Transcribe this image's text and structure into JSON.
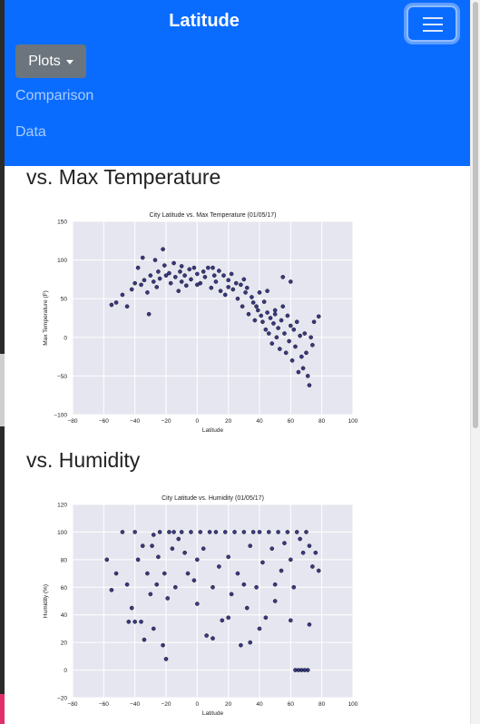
{
  "navbar": {
    "brand": "Latitude",
    "dropdown_label": "Plots",
    "links": [
      "Comparison",
      "Data"
    ]
  },
  "sections": [
    {
      "heading": "vs. Max Temperature"
    },
    {
      "heading": "vs. Humidity"
    }
  ],
  "colors": {
    "navbar": "#0a6cff",
    "button": "#6c757d",
    "marker": "#1a1a6e",
    "plot_bg": "#e5e6ef"
  },
  "chart_data": [
    {
      "type": "scatter",
      "title": "City Latitude vs. Max Temperature (01/05/17)",
      "xlabel": "Latitude",
      "ylabel": "Max Temperature (F)",
      "xlim": [
        -80,
        100
      ],
      "ylim": [
        -100,
        150
      ],
      "xticks": [
        -80,
        -60,
        -40,
        -20,
        0,
        20,
        40,
        60,
        80,
        100
      ],
      "yticks": [
        -100,
        -50,
        0,
        50,
        100,
        150
      ],
      "grid": true,
      "points": [
        [
          -55,
          42
        ],
        [
          -52,
          45
        ],
        [
          -48,
          55
        ],
        [
          -45,
          40
        ],
        [
          -42,
          62
        ],
        [
          -40,
          70
        ],
        [
          -38,
          90
        ],
        [
          -36,
          68
        ],
        [
          -35,
          103
        ],
        [
          -34,
          74
        ],
        [
          -32,
          58
        ],
        [
          -31,
          30
        ],
        [
          -30,
          80
        ],
        [
          -28,
          72
        ],
        [
          -27,
          100
        ],
        [
          -26,
          65
        ],
        [
          -25,
          85
        ],
        [
          -24,
          76
        ],
        [
          -22,
          114
        ],
        [
          -21,
          93
        ],
        [
          -20,
          80
        ],
        [
          -18,
          83
        ],
        [
          -17,
          70
        ],
        [
          -15,
          96
        ],
        [
          -14,
          78
        ],
        [
          -12,
          60
        ],
        [
          -11,
          85
        ],
        [
          -10,
          92
        ],
        [
          -8,
          80
        ],
        [
          -7,
          67
        ],
        [
          -5,
          88
        ],
        [
          -4,
          75
        ],
        [
          -2,
          90
        ],
        [
          0,
          82
        ],
        [
          2,
          70
        ],
        [
          4,
          85
        ],
        [
          5,
          78
        ],
        [
          7,
          90
        ],
        [
          9,
          64
        ],
        [
          11,
          80
        ],
        [
          12,
          72
        ],
        [
          14,
          86
        ],
        [
          15,
          60
        ],
        [
          17,
          80
        ],
        [
          18,
          55
        ],
        [
          20,
          74
        ],
        [
          22,
          82
        ],
        [
          23,
          62
        ],
        [
          25,
          70
        ],
        [
          26,
          50
        ],
        [
          28,
          68
        ],
        [
          29,
          40
        ],
        [
          31,
          58
        ],
        [
          32,
          64
        ],
        [
          33,
          30
        ],
        [
          35,
          52
        ],
        [
          36,
          45
        ],
        [
          37,
          22
        ],
        [
          38,
          40
        ],
        [
          39,
          35
        ],
        [
          40,
          58
        ],
        [
          41,
          28
        ],
        [
          42,
          20
        ],
        [
          43,
          46
        ],
        [
          44,
          10
        ],
        [
          45,
          32
        ],
        [
          46,
          5
        ],
        [
          47,
          25
        ],
        [
          48,
          -8
        ],
        [
          49,
          18
        ],
        [
          50,
          30
        ],
        [
          51,
          0
        ],
        [
          52,
          12
        ],
        [
          53,
          -15
        ],
        [
          54,
          22
        ],
        [
          55,
          40
        ],
        [
          56,
          5
        ],
        [
          57,
          -20
        ],
        [
          58,
          28
        ],
        [
          59,
          -5
        ],
        [
          60,
          15
        ],
        [
          61,
          -30
        ],
        [
          62,
          10
        ],
        [
          63,
          -12
        ],
        [
          64,
          20
        ],
        [
          65,
          -45
        ],
        [
          66,
          2
        ],
        [
          67,
          -25
        ],
        [
          68,
          -40
        ],
        [
          69,
          5
        ],
        [
          70,
          -20
        ],
        [
          71,
          -50
        ],
        [
          72,
          -62
        ],
        [
          73,
          0
        ],
        [
          74,
          -10
        ],
        [
          75,
          20
        ],
        [
          78,
          27
        ],
        [
          55,
          78
        ],
        [
          60,
          72
        ],
        [
          45,
          60
        ],
        [
          50,
          35
        ],
        [
          -10,
          72
        ],
        [
          30,
          75
        ],
        [
          0,
          68
        ],
        [
          10,
          90
        ],
        [
          20,
          65
        ]
      ]
    },
    {
      "type": "scatter",
      "title": "City Latitude vs. Humidity (01/05/17)",
      "xlabel": "Latitude",
      "ylabel": "Humidity (%)",
      "xlim": [
        -80,
        100
      ],
      "ylim": [
        -20,
        120
      ],
      "xticks": [
        -80,
        -60,
        -40,
        -20,
        0,
        20,
        40,
        60,
        80,
        100
      ],
      "yticks": [
        -20,
        0,
        20,
        40,
        60,
        80,
        100,
        120
      ],
      "grid": true,
      "points": [
        [
          -58,
          80
        ],
        [
          -55,
          58
        ],
        [
          -52,
          70
        ],
        [
          -48,
          100
        ],
        [
          -45,
          62
        ],
        [
          -42,
          45
        ],
        [
          -40,
          100
        ],
        [
          -38,
          80
        ],
        [
          -36,
          35
        ],
        [
          -35,
          90
        ],
        [
          -34,
          22
        ],
        [
          -32,
          70
        ],
        [
          -30,
          55
        ],
        [
          -29,
          90
        ],
        [
          -28,
          98
        ],
        [
          -26,
          62
        ],
        [
          -25,
          82
        ],
        [
          -24,
          100
        ],
        [
          -22,
          18
        ],
        [
          -21,
          70
        ],
        [
          -20,
          8
        ],
        [
          -19,
          52
        ],
        [
          -18,
          100
        ],
        [
          -16,
          88
        ],
        [
          -15,
          100
        ],
        [
          -14,
          60
        ],
        [
          -12,
          95
        ],
        [
          -10,
          100
        ],
        [
          -8,
          85
        ],
        [
          -6,
          70
        ],
        [
          -4,
          100
        ],
        [
          -2,
          65
        ],
        [
          0,
          48
        ],
        [
          2,
          100
        ],
        [
          4,
          88
        ],
        [
          6,
          25
        ],
        [
          8,
          100
        ],
        [
          10,
          60
        ],
        [
          12,
          100
        ],
        [
          14,
          75
        ],
        [
          16,
          36
        ],
        [
          18,
          100
        ],
        [
          20,
          82
        ],
        [
          22,
          55
        ],
        [
          24,
          100
        ],
        [
          26,
          70
        ],
        [
          28,
          18
        ],
        [
          30,
          100
        ],
        [
          32,
          45
        ],
        [
          34,
          90
        ],
        [
          36,
          100
        ],
        [
          38,
          60
        ],
        [
          40,
          100
        ],
        [
          42,
          78
        ],
        [
          44,
          38
        ],
        [
          46,
          100
        ],
        [
          48,
          88
        ],
        [
          50,
          62
        ],
        [
          52,
          100
        ],
        [
          54,
          72
        ],
        [
          56,
          92
        ],
        [
          58,
          100
        ],
        [
          60,
          80
        ],
        [
          62,
          60
        ],
        [
          63,
          0
        ],
        [
          65,
          0
        ],
        [
          67,
          0
        ],
        [
          69,
          0
        ],
        [
          71,
          0
        ],
        [
          64,
          100
        ],
        [
          66,
          95
        ],
        [
          68,
          85
        ],
        [
          70,
          100
        ],
        [
          72,
          90
        ],
        [
          74,
          75
        ],
        [
          76,
          85
        ],
        [
          78,
          72
        ],
        [
          -44,
          35
        ],
        [
          -40,
          35
        ],
        [
          -28,
          30
        ],
        [
          10,
          23
        ],
        [
          34,
          20
        ],
        [
          60,
          36
        ],
        [
          72,
          33
        ],
        [
          50,
          50
        ],
        [
          40,
          30
        ],
        [
          30,
          62
        ],
        [
          20,
          38
        ],
        [
          0,
          80
        ]
      ]
    }
  ]
}
